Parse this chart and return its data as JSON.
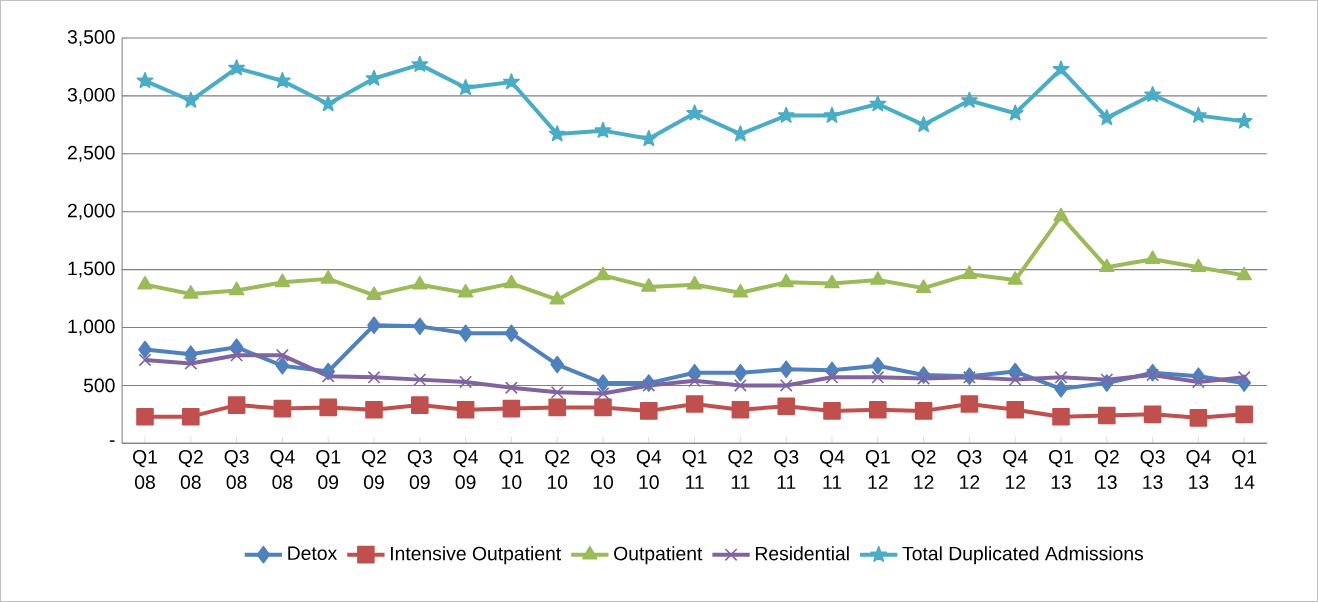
{
  "chart_data": {
    "type": "line",
    "categories": [
      "Q1 08",
      "Q2 08",
      "Q3 08",
      "Q4 08",
      "Q1 09",
      "Q2 09",
      "Q3 09",
      "Q4 09",
      "Q1 10",
      "Q2 10",
      "Q3 10",
      "Q4 10",
      "Q1 11",
      "Q2 11",
      "Q3 11",
      "Q4 11",
      "Q1 12",
      "Q2 12",
      "Q3 12",
      "Q4 12",
      "Q1 13",
      "Q2 13",
      "Q3 13",
      "Q4 13",
      "Q1 14"
    ],
    "series": [
      {
        "name": "Detox",
        "color": "#4f81bd",
        "marker": "diamond",
        "values": [
          810,
          770,
          830,
          670,
          620,
          1020,
          1010,
          950,
          950,
          680,
          520,
          520,
          610,
          610,
          640,
          630,
          670,
          590,
          580,
          620,
          470,
          520,
          610,
          580,
          520
        ]
      },
      {
        "name": "Intensive Outpatient",
        "color": "#c0504d",
        "marker": "square",
        "values": [
          230,
          230,
          330,
          300,
          310,
          290,
          330,
          290,
          300,
          310,
          310,
          280,
          340,
          290,
          320,
          280,
          290,
          280,
          340,
          290,
          230,
          240,
          250,
          220,
          250
        ]
      },
      {
        "name": "Outpatient",
        "color": "#9bbb59",
        "marker": "triangle",
        "values": [
          1370,
          1290,
          1320,
          1390,
          1420,
          1280,
          1370,
          1300,
          1380,
          1240,
          1450,
          1350,
          1370,
          1300,
          1390,
          1380,
          1410,
          1340,
          1460,
          1410,
          1960,
          1520,
          1590,
          1520,
          1450
        ]
      },
      {
        "name": "Residential",
        "color": "#8064a2",
        "marker": "cross",
        "values": [
          720,
          690,
          760,
          760,
          580,
          570,
          550,
          530,
          480,
          440,
          430,
          500,
          540,
          500,
          500,
          570,
          570,
          560,
          570,
          550,
          570,
          550,
          590,
          530,
          570
        ]
      },
      {
        "name": "Total Duplicated Admissions",
        "color": "#4bacc6",
        "marker": "star",
        "values": [
          3130,
          2960,
          3240,
          3130,
          2930,
          3150,
          3270,
          3070,
          3120,
          2670,
          2700,
          2630,
          2850,
          2670,
          2830,
          2830,
          2930,
          2750,
          2960,
          2850,
          3230,
          2810,
          3010,
          2830,
          2780
        ]
      }
    ],
    "ylim": [
      0,
      3500
    ],
    "yticks": [
      {
        "value": 0,
        "label": "-"
      },
      {
        "value": 500,
        "label": "500"
      },
      {
        "value": 1000,
        "label": "1,000"
      },
      {
        "value": 1500,
        "label": "1,500"
      },
      {
        "value": 2000,
        "label": "2,000"
      },
      {
        "value": 2500,
        "label": "2,500"
      },
      {
        "value": 3000,
        "label": "3,000"
      },
      {
        "value": 3500,
        "label": "3,500"
      }
    ],
    "grid": "y",
    "legend": "bottom",
    "line_style": "solid"
  }
}
